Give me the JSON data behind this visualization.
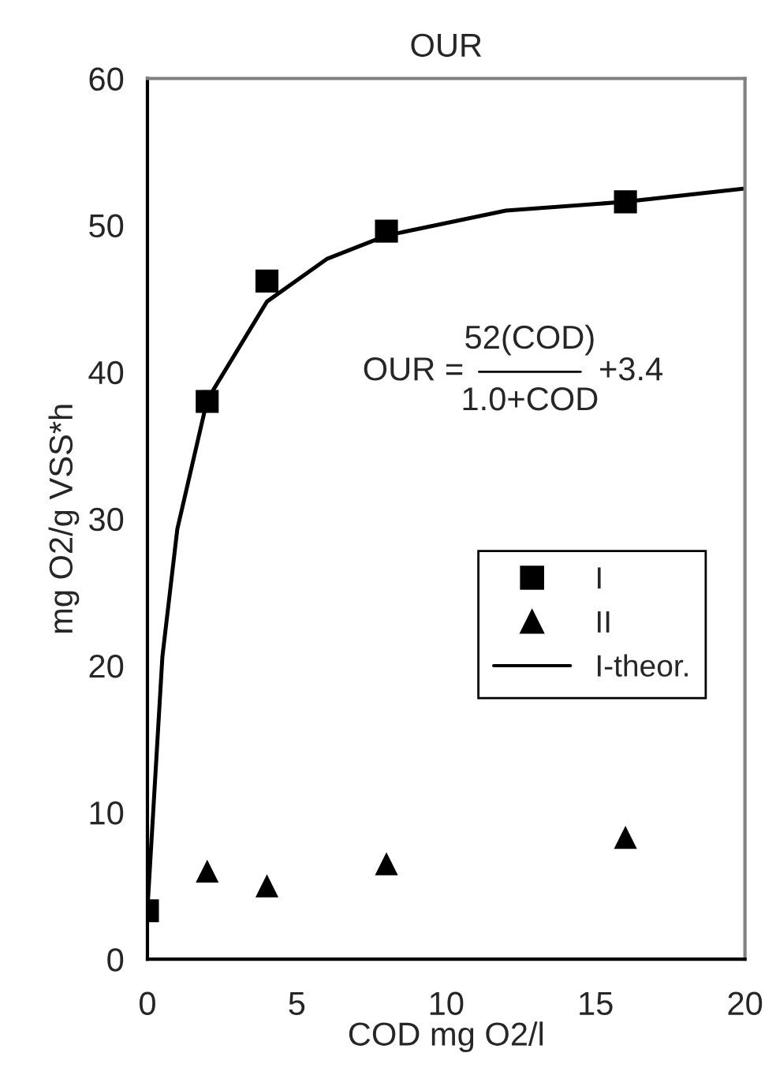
{
  "chart_data": {
    "type": "scatter",
    "title": "OUR",
    "xlabel": "COD mg O2/l",
    "ylabel": "mg O2/g VSS*h",
    "xlim": [
      0,
      20
    ],
    "xticks": [
      0,
      5,
      10,
      15,
      20
    ],
    "ylim": [
      0,
      60
    ],
    "yticks": [
      0,
      10,
      20,
      30,
      40,
      50,
      60
    ],
    "grid": false,
    "legend": "right",
    "annotations": [
      "OUR =",
      "52(COD)",
      "1.0+COD",
      "+3.4"
    ],
    "series": [
      {
        "name": "I",
        "marker": "square",
        "color": "#000000",
        "x": [
          0,
          2,
          4,
          8,
          16
        ],
        "values": [
          3.3,
          38.0,
          46.2,
          49.6,
          51.6
        ]
      },
      {
        "name": "II",
        "marker": "triangle",
        "color": "#000000",
        "x": [
          2,
          4,
          8,
          16
        ],
        "values": [
          6.0,
          5.0,
          6.5,
          8.3
        ]
      },
      {
        "name": "I-theor.",
        "type": "line",
        "marker": "none",
        "line_style": "solid",
        "color": "#000000",
        "x": [
          0,
          0.5,
          1,
          2,
          4,
          6,
          8,
          12,
          16,
          20
        ],
        "values": [
          3.4,
          20.6,
          29.3,
          38.1,
          44.8,
          47.7,
          49.3,
          51.0,
          51.6,
          52.5
        ]
      }
    ]
  }
}
